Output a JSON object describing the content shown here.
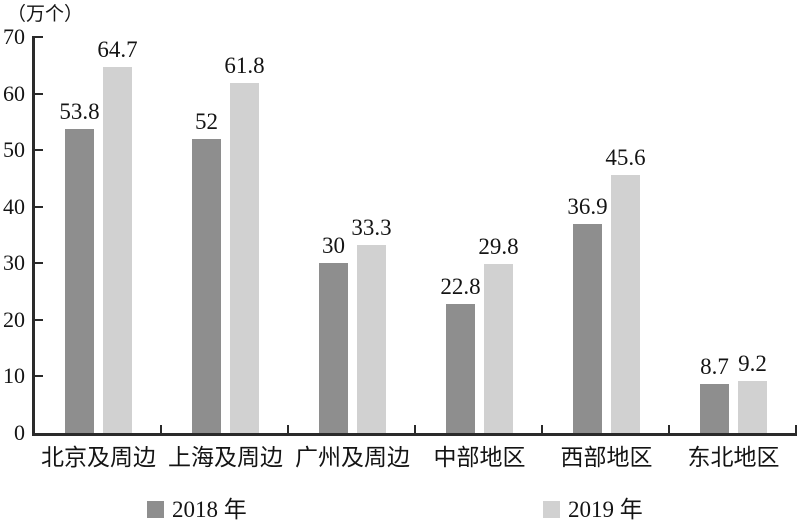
{
  "chart_data": {
    "type": "bar",
    "unit_label": "（万个）",
    "categories": [
      "北京及周边",
      "上海及周边",
      "广州及周边",
      "中部地区",
      "西部地区",
      "东北地区"
    ],
    "series": [
      {
        "name": "2018 年",
        "color": "#8e8e8e",
        "values": [
          53.8,
          52,
          30,
          22.8,
          36.9,
          8.7
        ]
      },
      {
        "name": "2019 年",
        "color": "#d1d1d1",
        "values": [
          64.7,
          61.8,
          33.3,
          29.8,
          45.6,
          9.2
        ]
      }
    ],
    "ylim": [
      0,
      70
    ],
    "yticks": [
      0,
      10,
      20,
      30,
      40,
      50,
      60,
      70
    ],
    "grid": false,
    "legend_position": "bottom",
    "value_labels_shown": true
  },
  "colors": {
    "axis": "#2a2a2a",
    "text": "#141414",
    "series_2018": "#8e8e8e",
    "series_2019": "#d1d1d1"
  }
}
